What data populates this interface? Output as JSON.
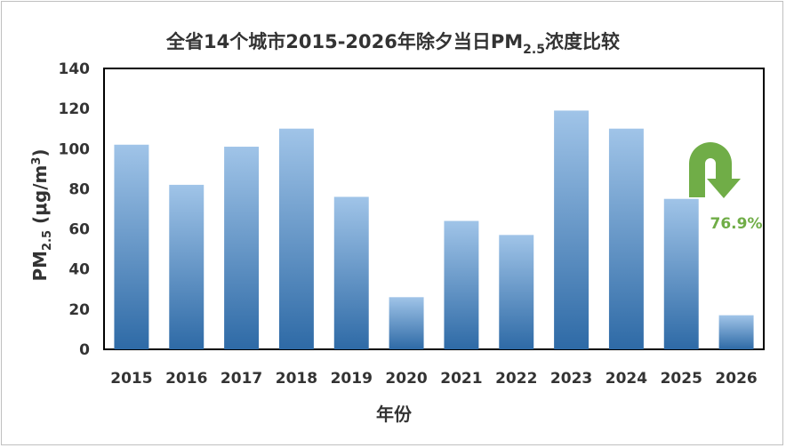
{
  "chart_data": {
    "type": "bar",
    "title": "全省14个城市2015-2026年除夕当日PM2.5浓度比较",
    "title_main": "全省14个城市2015-2026年除夕当日PM",
    "title_sub": "2.5",
    "title_tail": "浓度比较",
    "xlabel": "年份",
    "ylabel": "PM2.5 (μg/m3)",
    "ylabel_main": "PM",
    "ylabel_sub": "2.5",
    "ylabel_unit": " (μg/m",
    "ylabel_sup": "3",
    "ylabel_close": ")",
    "ylim": [
      0,
      140
    ],
    "yticks": [
      "0",
      "20",
      "40",
      "60",
      "80",
      "100",
      "120",
      "140"
    ],
    "categories": [
      "2015",
      "2016",
      "2017",
      "2018",
      "2019",
      "2020",
      "2021",
      "2022",
      "2023",
      "2024",
      "2025",
      "2026"
    ],
    "values": [
      102,
      82,
      101,
      110,
      76,
      26,
      64,
      57,
      119,
      110,
      75,
      17
    ],
    "annotation": {
      "text": "76.9%",
      "color": "#70ad47",
      "from_category": "2025",
      "to_category": "2026"
    },
    "colors": {
      "bar_top": "#a0c4e8",
      "bar_bottom": "#2e6aa6",
      "plot_border": "#000000"
    },
    "grid": false,
    "legend": "none"
  }
}
